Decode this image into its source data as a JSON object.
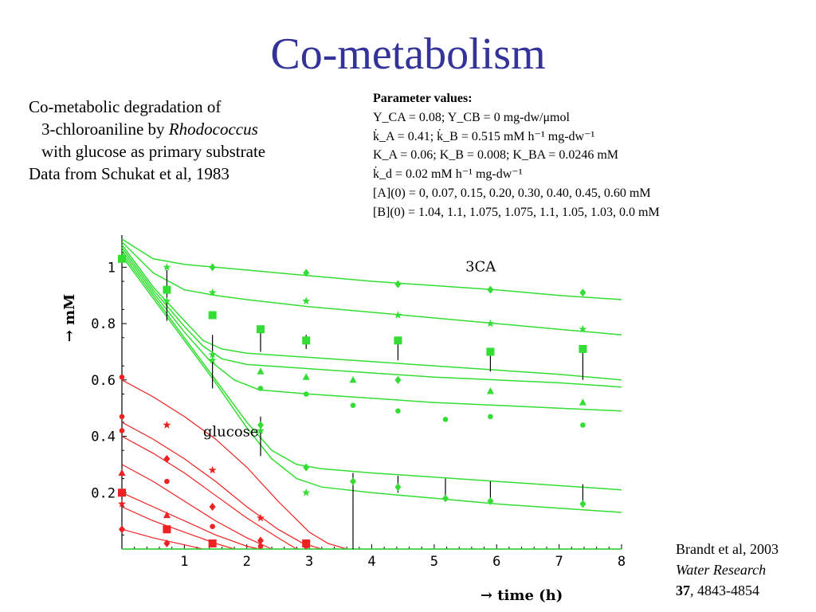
{
  "slide": {
    "title": "Co-metabolism",
    "description": {
      "line1": "Co-metabolic degradation of",
      "line2_prefix": "3-chloroaniline by ",
      "line2_italic": "Rhodococcus",
      "line3": "with glucose as primary substrate",
      "line4": "Data from Schukat et al, 1983"
    },
    "parameters": {
      "header": "Parameter values:",
      "lines": [
        "Y_CA = 0.08; Y_CB = 0 mg-dw/μmol",
        "k̇_A = 0.41; k̇_B = 0.515 mM h⁻¹ mg-dw⁻¹",
        "K_A = 0.06; K_B = 0.008; K_BA = 0.0246 mM",
        "k̇_d = 0.02 mM h⁻¹ mg-dw⁻¹",
        "[A](0) = 0, 0.07, 0.15, 0.20, 0.30, 0.40, 0.45, 0.60 mM",
        "[B](0) = 1.04, 1.1, 1.075, 1.075, 1.1, 1.05, 1.03, 0.0 mM"
      ]
    },
    "citation": {
      "line1": "Brandt et al, 2003",
      "journal": "Water Research",
      "volume": "37",
      "pages": ", 4843-4854"
    }
  },
  "colors": {
    "title": "#333399",
    "green": "#33dd33",
    "red": "#ee2222",
    "axis": "#000000"
  },
  "chart_data": {
    "type": "line",
    "xlabel": "→ time (h)",
    "ylabel": "→ mM",
    "xlim": [
      0,
      8
    ],
    "ylim": [
      0,
      1.1
    ],
    "xticks": [
      1,
      2,
      3,
      4,
      5,
      6,
      7,
      8
    ],
    "yticks": [
      0.2,
      0.4,
      0.6,
      0.8,
      1
    ],
    "ytick_labels": [
      "0.2",
      "0.4",
      "0.6",
      "0.8",
      "1"
    ],
    "annotations": [
      {
        "text": "3CA",
        "x": 5.5,
        "y": 0.985
      },
      {
        "text": "glucose",
        "x": 1.3,
        "y": 0.4
      }
    ],
    "green_curves": [
      {
        "name": "3CA-1",
        "x": [
          0,
          0.5,
          1,
          1.5,
          2,
          3,
          4,
          5,
          6,
          7,
          8
        ],
        "y": [
          1.1,
          1.03,
          1.01,
          1.0,
          0.99,
          0.97,
          0.95,
          0.935,
          0.92,
          0.9,
          0.885
        ]
      },
      {
        "name": "3CA-2",
        "x": [
          0,
          0.5,
          1,
          1.5,
          2,
          3,
          4,
          5,
          6,
          7,
          8
        ],
        "y": [
          1.09,
          0.98,
          0.92,
          0.9,
          0.885,
          0.86,
          0.84,
          0.82,
          0.8,
          0.78,
          0.76
        ]
      },
      {
        "name": "3CA-3",
        "x": [
          0,
          0.5,
          1,
          1.3,
          1.6,
          2,
          3,
          4,
          5,
          6,
          7,
          8
        ],
        "y": [
          1.08,
          0.93,
          0.81,
          0.74,
          0.71,
          0.695,
          0.68,
          0.665,
          0.65,
          0.635,
          0.62,
          0.6
        ]
      },
      {
        "name": "3CA-4",
        "x": [
          0,
          0.5,
          1,
          1.3,
          1.6,
          2,
          3,
          4,
          5,
          6,
          7,
          8
        ],
        "y": [
          1.07,
          0.92,
          0.79,
          0.72,
          0.675,
          0.655,
          0.64,
          0.625,
          0.61,
          0.6,
          0.59,
          0.575
        ]
      },
      {
        "name": "3CA-5",
        "x": [
          0,
          0.5,
          1,
          1.4,
          1.8,
          2.2,
          3,
          4,
          5,
          6,
          7,
          8
        ],
        "y": [
          1.06,
          0.91,
          0.77,
          0.67,
          0.6,
          0.565,
          0.55,
          0.535,
          0.52,
          0.51,
          0.5,
          0.49
        ]
      },
      {
        "name": "3CA-6",
        "x": [
          0,
          0.5,
          1,
          1.5,
          2,
          2.4,
          2.8,
          3.2,
          4,
          5,
          6,
          7,
          8
        ],
        "y": [
          1.05,
          0.9,
          0.75,
          0.6,
          0.45,
          0.35,
          0.3,
          0.285,
          0.27,
          0.255,
          0.24,
          0.225,
          0.21
        ]
      },
      {
        "name": "3CA-7",
        "x": [
          0,
          0.5,
          1,
          1.5,
          2,
          2.4,
          2.8,
          3.2,
          4,
          5,
          6,
          7,
          8
        ],
        "y": [
          1.04,
          0.89,
          0.74,
          0.59,
          0.43,
          0.32,
          0.25,
          0.22,
          0.2,
          0.18,
          0.16,
          0.145,
          0.13
        ]
      },
      {
        "name": "3CA-8",
        "x": [
          0,
          8
        ],
        "y": [
          0.0,
          0.0
        ]
      }
    ],
    "red_curves": [
      {
        "name": "glucose-1",
        "x": [
          0,
          0.5,
          1,
          1.5,
          2,
          2.5,
          3,
          3.3,
          3.6
        ],
        "y": [
          0.6,
          0.54,
          0.47,
          0.39,
          0.29,
          0.17,
          0.06,
          0.02,
          0.0
        ]
      },
      {
        "name": "glucose-2",
        "x": [
          0,
          0.5,
          1,
          1.5,
          2,
          2.5,
          2.9,
          3.2
        ],
        "y": [
          0.45,
          0.39,
          0.32,
          0.24,
          0.15,
          0.07,
          0.02,
          0.0
        ]
      },
      {
        "name": "glucose-3",
        "x": [
          0,
          0.5,
          1,
          1.5,
          2,
          2.5,
          2.8
        ],
        "y": [
          0.4,
          0.34,
          0.27,
          0.19,
          0.11,
          0.04,
          0.0
        ]
      },
      {
        "name": "glucose-4",
        "x": [
          0,
          0.5,
          1,
          1.5,
          2,
          2.4
        ],
        "y": [
          0.3,
          0.24,
          0.17,
          0.1,
          0.04,
          0.0
        ]
      },
      {
        "name": "glucose-5",
        "x": [
          0,
          0.5,
          1,
          1.5,
          2,
          2.2
        ],
        "y": [
          0.2,
          0.15,
          0.1,
          0.05,
          0.01,
          0.0
        ]
      },
      {
        "name": "glucose-6",
        "x": [
          0,
          0.5,
          1,
          1.5,
          1.8
        ],
        "y": [
          0.15,
          0.1,
          0.06,
          0.02,
          0.0
        ]
      },
      {
        "name": "glucose-7",
        "x": [
          0,
          0.5,
          1,
          1.3
        ],
        "y": [
          0.07,
          0.04,
          0.015,
          0.0
        ]
      }
    ],
    "green_points": [
      {
        "x": 0.0,
        "y": 1.03,
        "m": "square"
      },
      {
        "x": 0.72,
        "y": 1.0,
        "m": "star"
      },
      {
        "x": 0.72,
        "y": 0.92,
        "m": "square"
      },
      {
        "x": 0.72,
        "y": 0.88,
        "m": "star"
      },
      {
        "x": 1.45,
        "y": 1.0,
        "m": "diamond"
      },
      {
        "x": 1.45,
        "y": 0.91,
        "m": "star"
      },
      {
        "x": 1.45,
        "y": 0.83,
        "m": "square"
      },
      {
        "x": 1.45,
        "y": 0.69,
        "m": "star"
      },
      {
        "x": 1.45,
        "y": 0.67,
        "m": "star"
      },
      {
        "x": 2.22,
        "y": 0.78,
        "m": "square"
      },
      {
        "x": 2.22,
        "y": 0.63,
        "m": "triangle"
      },
      {
        "x": 2.22,
        "y": 0.57,
        "m": "circle"
      },
      {
        "x": 2.22,
        "y": 0.44,
        "m": "diamond"
      },
      {
        "x": 2.22,
        "y": 0.42,
        "m": "star"
      },
      {
        "x": 2.95,
        "y": 0.98,
        "m": "diamond"
      },
      {
        "x": 2.95,
        "y": 0.88,
        "m": "star"
      },
      {
        "x": 2.95,
        "y": 0.74,
        "m": "square"
      },
      {
        "x": 2.95,
        "y": 0.61,
        "m": "triangle"
      },
      {
        "x": 2.95,
        "y": 0.55,
        "m": "circle"
      },
      {
        "x": 2.95,
        "y": 0.29,
        "m": "diamond"
      },
      {
        "x": 2.95,
        "y": 0.2,
        "m": "star"
      },
      {
        "x": 3.7,
        "y": 0.6,
        "m": "triangle"
      },
      {
        "x": 3.7,
        "y": 0.51,
        "m": "circle"
      },
      {
        "x": 3.7,
        "y": 0.24,
        "m": "diamond"
      },
      {
        "x": 4.42,
        "y": 0.94,
        "m": "diamond"
      },
      {
        "x": 4.42,
        "y": 0.83,
        "m": "star"
      },
      {
        "x": 4.42,
        "y": 0.74,
        "m": "square"
      },
      {
        "x": 4.42,
        "y": 0.6,
        "m": "diamond"
      },
      {
        "x": 4.42,
        "y": 0.49,
        "m": "circle"
      },
      {
        "x": 4.42,
        "y": 0.22,
        "m": "diamond"
      },
      {
        "x": 5.18,
        "y": 0.46,
        "m": "circle"
      },
      {
        "x": 5.18,
        "y": 0.18,
        "m": "diamond"
      },
      {
        "x": 5.9,
        "y": 0.92,
        "m": "diamond"
      },
      {
        "x": 5.9,
        "y": 0.8,
        "m": "star"
      },
      {
        "x": 5.9,
        "y": 0.7,
        "m": "square"
      },
      {
        "x": 5.9,
        "y": 0.56,
        "m": "triangle"
      },
      {
        "x": 5.9,
        "y": 0.47,
        "m": "circle"
      },
      {
        "x": 5.9,
        "y": 0.17,
        "m": "diamond"
      },
      {
        "x": 7.38,
        "y": 0.91,
        "m": "diamond"
      },
      {
        "x": 7.38,
        "y": 0.78,
        "m": "star"
      },
      {
        "x": 7.38,
        "y": 0.71,
        "m": "square"
      },
      {
        "x": 7.38,
        "y": 0.52,
        "m": "triangle"
      },
      {
        "x": 7.38,
        "y": 0.44,
        "m": "circle"
      },
      {
        "x": 7.38,
        "y": 0.16,
        "m": "diamond"
      }
    ],
    "red_points": [
      {
        "x": 0.0,
        "y": 0.61,
        "m": "circle"
      },
      {
        "x": 0.0,
        "y": 0.47,
        "m": "circle"
      },
      {
        "x": 0.0,
        "y": 0.42,
        "m": "circle"
      },
      {
        "x": 0.0,
        "y": 0.27,
        "m": "triangle"
      },
      {
        "x": 0.0,
        "y": 0.2,
        "m": "square"
      },
      {
        "x": 0.0,
        "y": 0.16,
        "m": "star"
      },
      {
        "x": 0.0,
        "y": 0.07,
        "m": "diamond"
      },
      {
        "x": 0.72,
        "y": 0.44,
        "m": "star"
      },
      {
        "x": 0.72,
        "y": 0.32,
        "m": "diamond"
      },
      {
        "x": 0.72,
        "y": 0.24,
        "m": "circle"
      },
      {
        "x": 0.72,
        "y": 0.12,
        "m": "triangle"
      },
      {
        "x": 0.72,
        "y": 0.07,
        "m": "square"
      },
      {
        "x": 0.72,
        "y": 0.02,
        "m": "diamond"
      },
      {
        "x": 1.45,
        "y": 0.28,
        "m": "star"
      },
      {
        "x": 1.45,
        "y": 0.15,
        "m": "diamond"
      },
      {
        "x": 1.45,
        "y": 0.08,
        "m": "circle"
      },
      {
        "x": 1.45,
        "y": 0.02,
        "m": "square"
      },
      {
        "x": 2.22,
        "y": 0.11,
        "m": "star"
      },
      {
        "x": 2.22,
        "y": 0.03,
        "m": "diamond"
      },
      {
        "x": 2.22,
        "y": 0.01,
        "m": "circle"
      },
      {
        "x": 2.95,
        "y": 0.02,
        "m": "square"
      },
      {
        "x": 2.95,
        "y": 0.01,
        "m": "circle"
      }
    ],
    "error_bars": [
      {
        "x": 0.72,
        "y_lo": 0.81,
        "y_hi": 0.99
      },
      {
        "x": 1.45,
        "y_lo": 0.57,
        "y_hi": 0.76
      },
      {
        "x": 2.22,
        "y_lo": 0.33,
        "y_hi": 0.47
      },
      {
        "x": 2.22,
        "y_lo": 0.7,
        "y_hi": 0.78
      },
      {
        "x": 2.95,
        "y_lo": 0.71,
        "y_hi": 0.76
      },
      {
        "x": 3.7,
        "y_lo": 0.0,
        "y_hi": 0.2
      },
      {
        "x": 3.7,
        "y_lo": 0.2,
        "y_hi": 0.27
      },
      {
        "x": 4.42,
        "y_lo": 0.67,
        "y_hi": 0.74
      },
      {
        "x": 4.42,
        "y_lo": 0.2,
        "y_hi": 0.26
      },
      {
        "x": 5.18,
        "y_lo": 0.17,
        "y_hi": 0.25
      },
      {
        "x": 5.9,
        "y_lo": 0.63,
        "y_hi": 0.7
      },
      {
        "x": 5.9,
        "y_lo": 0.16,
        "y_hi": 0.24
      },
      {
        "x": 7.38,
        "y_lo": 0.6,
        "y_hi": 0.71
      },
      {
        "x": 7.38,
        "y_lo": 0.15,
        "y_hi": 0.23
      }
    ]
  }
}
